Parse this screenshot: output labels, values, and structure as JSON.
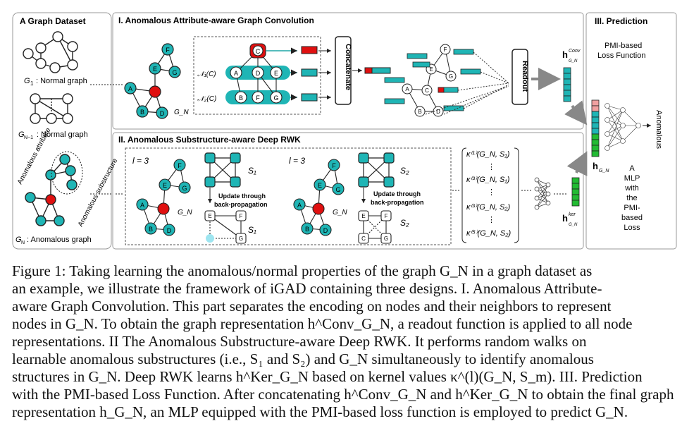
{
  "panels": {
    "dataset": {
      "title": "A Graph Dataset",
      "g1_label": "G",
      "g1_sub": "1",
      "g1_text": ": Normal graph",
      "gn1_label": "G",
      "gn1_sub": "N−1",
      "gn1_text": ": Normal graph",
      "gn_label": "G",
      "gn_sub": "N",
      "gn_text": ": Anomalous graph",
      "anom_attr": "Anomalous attribute",
      "anom_sub": "Anomalous substructure"
    },
    "conv": {
      "title": "I. Anomalous Attribute-aware Graph Convolution",
      "concat": "Concatenate",
      "readout": "Readout",
      "n1": "𝒩₁(C)",
      "n2": "𝒩₂(C)",
      "gn": "G_N",
      "h_label": "h",
      "h_sup": "Conv",
      "h_sub": "G_N"
    },
    "rwk": {
      "title": "II. Anomalous Substructure-aware Deep RWK",
      "l1": "l = 3",
      "l2": "l = 3",
      "s1": "S₁",
      "s2": "S₂",
      "update1": "Update through",
      "update2": "back-propagation",
      "k1": "κ⁽¹⁾(G_N, S₁)",
      "k2": "κ⁽³⁾(G_N, S₁)",
      "k3": "κ⁽³⁾(G_N, S₂)",
      "k4": "κ⁽⁵⁾(G_N, S₂)",
      "h_label": "h",
      "h_sup": "ker",
      "h_sub": "G_N"
    },
    "pred": {
      "title": "III. Prediction",
      "loss1": "PMI-based",
      "loss2": "Loss Function",
      "hg": "h",
      "hg_sub": "G_N",
      "mlp": [
        "A",
        "MLP",
        "with",
        "the",
        "PMI-",
        "based",
        "Loss"
      ],
      "anomalous": "Anomalous"
    }
  },
  "colors": {
    "teal": "#1fb5b5",
    "red": "#e01010",
    "green": "#22bb33",
    "pink": "#f0a0a0",
    "box_border": "#888888"
  },
  "caption": {
    "lines": [
      "Figure 1:  Taking learning the anomalous/normal properties of the graph G_N in a graph dataset as",
      "an example, we illustrate the framework of iGAD containing three designs. I. Anomalous Attribute-",
      "aware Graph Convolution. This part separates the encoding on nodes and their neighbors to represent",
      "nodes in G_N. To obtain the graph representation h^Conv_G_N, a readout function is applied to all node",
      "representations. II The Anomalous Substructure-aware Deep RWK. It performs random walks on",
      "learnable anomalous substructures (i.e., S₁ and S₂) and G_N simultaneously to identify anomalous",
      "structures in G_N. Deep RWK learns h^Ker_G_N based on kernel values κ^(l)(G_N, S_m). III. Prediction",
      "with the PMI-based Loss Function. After concatenating h^Conv_G_N and h^Ker_G_N to obtain the final graph",
      "representation h_G_N, an MLP equipped with the PMI-based loss function is employed to predict G_N."
    ]
  }
}
